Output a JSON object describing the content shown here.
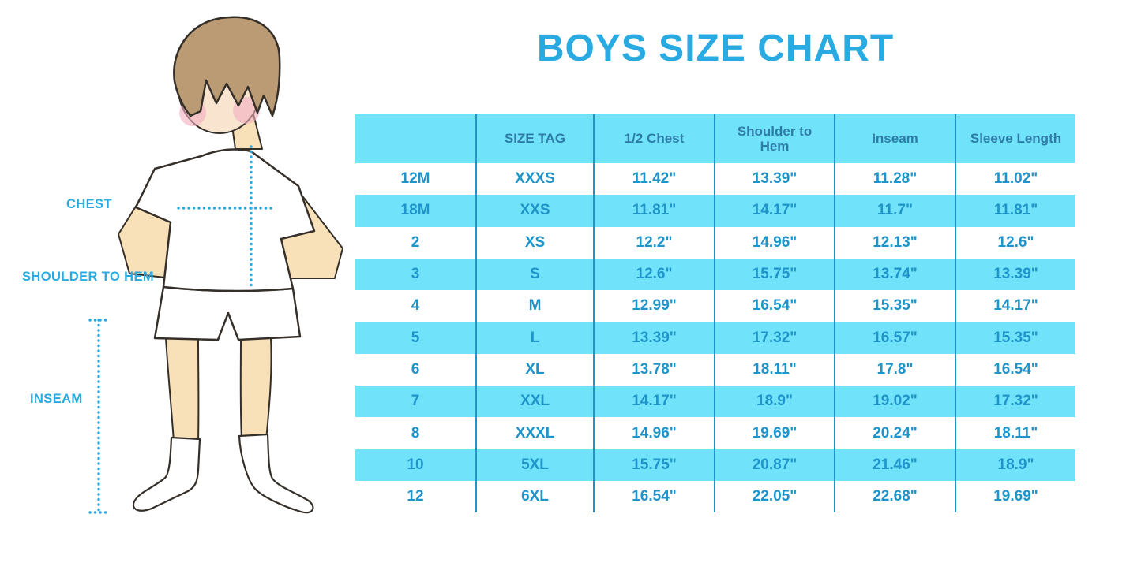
{
  "title": "BOYS SIZE CHART",
  "colors": {
    "accent": "#29ABE2",
    "table_fill": "#70E2F9",
    "header_text": "#2E7CA8",
    "cell_text": "#1E94CA",
    "column_divider": "#2095C5"
  },
  "figure": {
    "description": "cartoon boy in white t-shirt, shorts and knee socks with dotted measurement guides",
    "labels": [
      {
        "id": "chest",
        "text": "CHEST"
      },
      {
        "id": "shoulder_to_hem",
        "text": "SHOULDER TO HEM"
      },
      {
        "id": "inseam",
        "text": "INSEAM"
      }
    ]
  },
  "chart_data": {
    "type": "table",
    "title": "BOYS SIZE CHART",
    "columns": [
      "",
      "SIZE TAG",
      "1/2 Chest",
      "Shoulder to Hem",
      "Inseam",
      "Sleeve Length"
    ],
    "rows": [
      [
        "12M",
        "XXXS",
        "11.42\"",
        "13.39\"",
        "11.28\"",
        "11.02\""
      ],
      [
        "18M",
        "XXS",
        "11.81\"",
        "14.17\"",
        "11.7\"",
        "11.81\""
      ],
      [
        "2",
        "XS",
        "12.2\"",
        "14.96\"",
        "12.13\"",
        "12.6\""
      ],
      [
        "3",
        "S",
        "12.6\"",
        "15.75\"",
        "13.74\"",
        "13.39\""
      ],
      [
        "4",
        "M",
        "12.99\"",
        "16.54\"",
        "15.35\"",
        "14.17\""
      ],
      [
        "5",
        "L",
        "13.39\"",
        "17.32\"",
        "16.57\"",
        "15.35\""
      ],
      [
        "6",
        "XL",
        "13.78\"",
        "18.11\"",
        "17.8\"",
        "16.54\""
      ],
      [
        "7",
        "XXL",
        "14.17\"",
        "18.9\"",
        "19.02\"",
        "17.32\""
      ],
      [
        "8",
        "XXXL",
        "14.96\"",
        "19.69\"",
        "20.24\"",
        "18.11\""
      ],
      [
        "10",
        "5XL",
        "15.75\"",
        "20.87\"",
        "21.46\"",
        "18.9\""
      ],
      [
        "12",
        "6XL",
        "16.54\"",
        "22.05\"",
        "22.68\"",
        "19.69\""
      ]
    ],
    "layout": {
      "header_fill": "light-cyan",
      "row_striping": "white and light-cyan alternating",
      "grid": "vertical column dividers only"
    }
  }
}
